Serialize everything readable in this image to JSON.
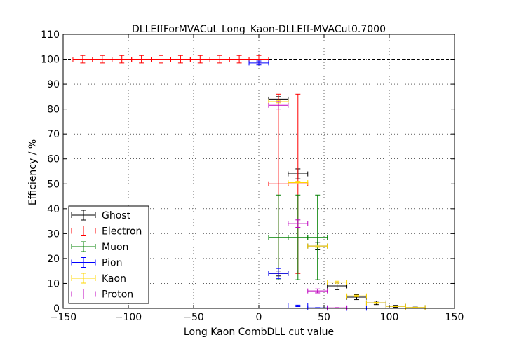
{
  "chart_data": {
    "type": "errorbar",
    "title": "DLLEffForMVACut_Long_Kaon-DLLEff-MVACut0.7000",
    "xlabel": "Long Kaon CombDLL cut value",
    "ylabel": "Efficiency / %",
    "xlim": [
      -150,
      150
    ],
    "ylim": [
      0,
      110
    ],
    "xticks": [
      -150,
      -100,
      -50,
      0,
      50,
      100,
      150
    ],
    "yticks": [
      0,
      10,
      20,
      30,
      40,
      50,
      60,
      70,
      80,
      90,
      100,
      110
    ],
    "grid": true,
    "legend_position": "lower-left",
    "reference_line": {
      "y": 100,
      "style": "dashed",
      "color": "#000000"
    },
    "series": [
      {
        "name": "Ghost",
        "color": "#000000",
        "points": [
          {
            "x": 15,
            "xerr": 7.5,
            "y": 14,
            "yerr": 1
          },
          {
            "x": 30,
            "xerr": 7.5,
            "y": 54,
            "yerr": 2
          },
          {
            "x": 45,
            "xerr": 7.5,
            "y": 25,
            "yerr": 1.5
          },
          {
            "x": 60,
            "xerr": 7.5,
            "y": 9,
            "yerr": 1.5
          },
          {
            "x": 75,
            "xerr": 7.5,
            "y": 4.5,
            "yerr": 1
          },
          {
            "x": 90,
            "xerr": 7.5,
            "y": 2.2,
            "yerr": 0.7
          },
          {
            "x": 105,
            "xerr": 7.5,
            "y": 0.8,
            "yerr": 0.4
          },
          {
            "x": 120,
            "xerr": 7.5,
            "y": 0.3,
            "yerr": 0.2
          },
          {
            "x": 15,
            "xerr": 7.5,
            "y": 84,
            "yerr": 1
          }
        ]
      },
      {
        "name": "Electron",
        "color": "#ff0000",
        "points": [
          {
            "x": -135,
            "xerr": 7.5,
            "y": 100,
            "yerr": 1.5
          },
          {
            "x": -120,
            "xerr": 7.5,
            "y": 100,
            "yerr": 1.5
          },
          {
            "x": -105,
            "xerr": 7.5,
            "y": 100,
            "yerr": 1.5
          },
          {
            "x": -90,
            "xerr": 7.5,
            "y": 100,
            "yerr": 1.5
          },
          {
            "x": -75,
            "xerr": 7.5,
            "y": 100,
            "yerr": 1.5
          },
          {
            "x": -60,
            "xerr": 7.5,
            "y": 100,
            "yerr": 1.5
          },
          {
            "x": -45,
            "xerr": 7.5,
            "y": 100,
            "yerr": 1.5
          },
          {
            "x": -30,
            "xerr": 7.5,
            "y": 100,
            "yerr": 1.5
          },
          {
            "x": -15,
            "xerr": 7.5,
            "y": 100,
            "yerr": 1.5
          },
          {
            "x": 0,
            "xerr": 7.5,
            "y": 100,
            "yerr": 1.5
          },
          {
            "x": 15,
            "xerr": 7.5,
            "y": 50,
            "yerr": 36
          },
          {
            "x": 30,
            "xerr": 7.5,
            "y": 50,
            "yerr": 36
          }
        ]
      },
      {
        "name": "Muon",
        "color": "#008000",
        "points": [
          {
            "x": 15,
            "xerr": 7.5,
            "y": 28.5,
            "yerr": 17
          },
          {
            "x": 30,
            "xerr": 7.5,
            "y": 28.5,
            "yerr": 17
          },
          {
            "x": 45,
            "xerr": 7.5,
            "y": 28.5,
            "yerr": 17
          }
        ]
      },
      {
        "name": "Pion",
        "color": "#0000ff",
        "points": [
          {
            "x": 0,
            "xerr": 7.5,
            "y": 98.5,
            "yerr": 0.8
          },
          {
            "x": 15,
            "xerr": 7.5,
            "y": 14,
            "yerr": 2
          },
          {
            "x": 30,
            "xerr": 7.5,
            "y": 1,
            "yerr": 0.3
          },
          {
            "x": 45,
            "xerr": 7.5,
            "y": 0.2,
            "yerr": 0.1
          },
          {
            "x": 60,
            "xerr": 7.5,
            "y": 0.1,
            "yerr": 0.05
          },
          {
            "x": 75,
            "xerr": 7.5,
            "y": 0.05,
            "yerr": 0.03
          }
        ]
      },
      {
        "name": "Kaon",
        "color": "#ffd700",
        "points": [
          {
            "x": 15,
            "xerr": 7.5,
            "y": 83,
            "yerr": 0.5
          },
          {
            "x": 30,
            "xerr": 7.5,
            "y": 50.5,
            "yerr": 0.5
          },
          {
            "x": 45,
            "xerr": 7.5,
            "y": 25,
            "yerr": 0.5
          },
          {
            "x": 60,
            "xerr": 7.5,
            "y": 10.5,
            "yerr": 0.4
          },
          {
            "x": 75,
            "xerr": 7.5,
            "y": 5,
            "yerr": 0.3
          },
          {
            "x": 90,
            "xerr": 7.5,
            "y": 2.2,
            "yerr": 0.2
          },
          {
            "x": 105,
            "xerr": 7.5,
            "y": 0.8,
            "yerr": 0.1
          },
          {
            "x": 120,
            "xerr": 7.5,
            "y": 0.3,
            "yerr": 0.1
          }
        ]
      },
      {
        "name": "Proton",
        "color": "#bf00bf",
        "points": [
          {
            "x": 15,
            "xerr": 7.5,
            "y": 81.5,
            "yerr": 1.5
          },
          {
            "x": 30,
            "xerr": 7.5,
            "y": 34,
            "yerr": 1.5
          },
          {
            "x": 45,
            "xerr": 7.5,
            "y": 7,
            "yerr": 0.8
          },
          {
            "x": 60,
            "xerr": 7.5,
            "y": 0.2,
            "yerr": 0.1
          }
        ]
      }
    ]
  }
}
